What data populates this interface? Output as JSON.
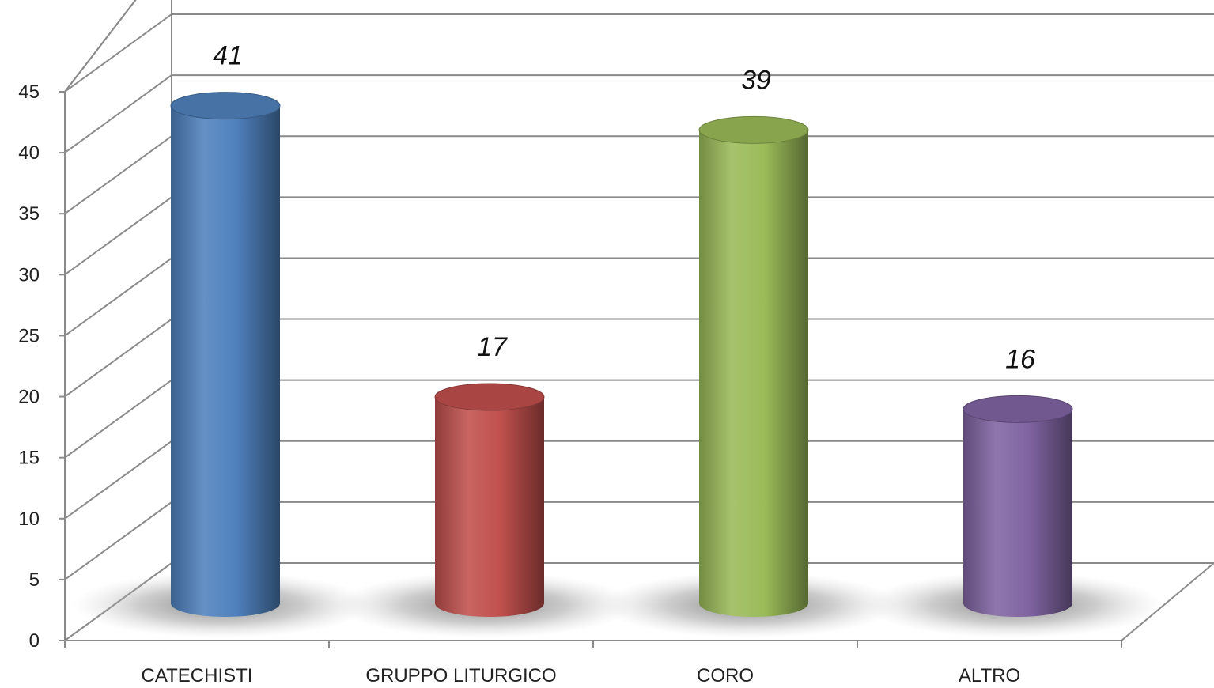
{
  "chart_data": {
    "type": "bar",
    "style": "3d-cylinder",
    "title": "",
    "xlabel": "",
    "ylabel": "",
    "categories": [
      "CATECHISTI",
      "GRUPPO LITURGICO",
      "CORO",
      "ALTRO"
    ],
    "values": [
      41,
      17,
      39,
      16
    ],
    "data_labels": [
      "41",
      "17",
      "39",
      "16"
    ],
    "ylim": [
      0,
      45
    ],
    "yticks": [
      0,
      5,
      10,
      15,
      20,
      25,
      30,
      35,
      40,
      45
    ],
    "ytick_labels": [
      "0",
      "5",
      "10",
      "15",
      "20",
      "25",
      "30",
      "35",
      "40",
      "45"
    ],
    "grid": true,
    "legend": "none",
    "colors": [
      "#4F81BD",
      "#C0504D",
      "#9BBB59",
      "#8064A2"
    ]
  }
}
